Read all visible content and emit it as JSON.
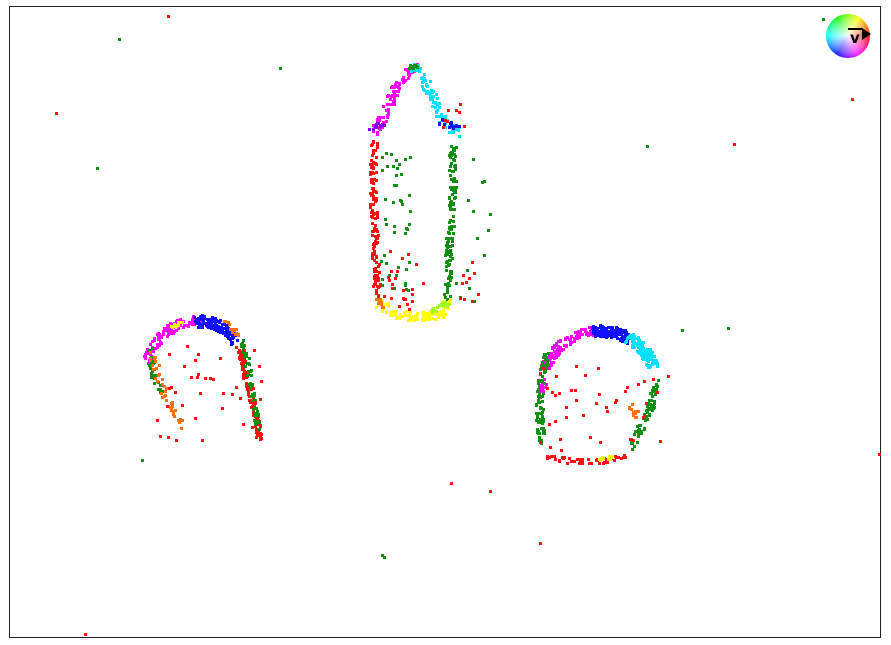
{
  "legend": {
    "label": "v",
    "colors": {
      "right": "#ff0000",
      "up": "#ff00ff",
      "up_mid": "#0000ff",
      "left": "#00ffff",
      "down": "#00ff00",
      "down_mid": "#ffff00"
    }
  },
  "objects": [
    {
      "kind": "bottle"
    },
    {
      "kind": "left-blob"
    },
    {
      "kind": "right-blob"
    }
  ],
  "noise_colors": [
    "#ff0000",
    "#0a8a0a"
  ],
  "outline_colors": {
    "red": "#ff1010",
    "green": "#109010",
    "magenta": "#ff00ff",
    "violet": "#8000ff",
    "blue": "#1010ff",
    "cyan": "#00e0ff",
    "yellow": "#ffff00",
    "orange": "#ff7000",
    "lime": "#a0ff20"
  }
}
